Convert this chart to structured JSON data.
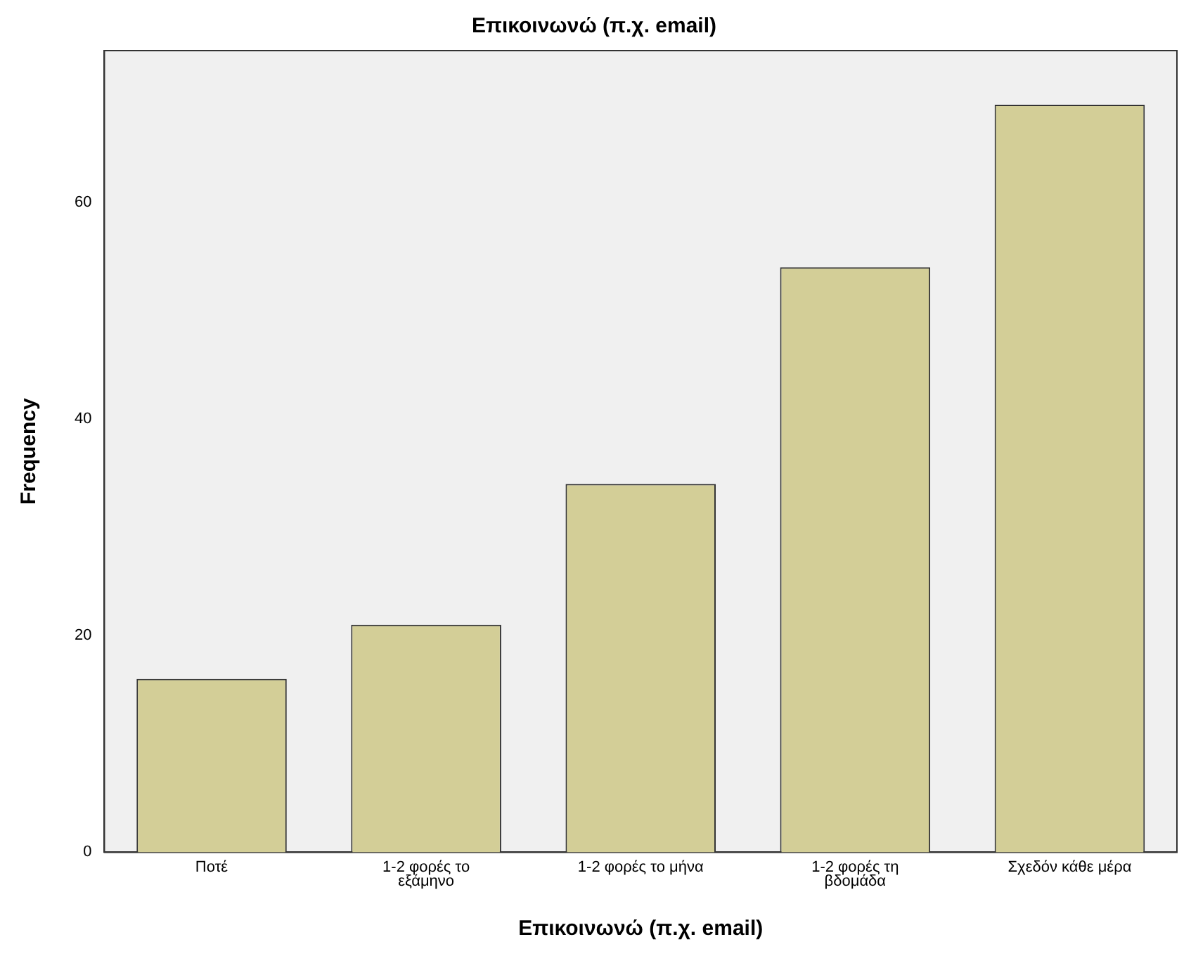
{
  "chart_data": {
    "type": "bar",
    "title": "Επικοινωνώ (π.χ. email)",
    "xlabel": "Επικοινωνώ (π.χ. email)",
    "ylabel": "Frequency",
    "categories": [
      "Ποτέ",
      "1-2 φορές το εξάμηνο",
      "1-2 φορές το μήνα",
      "1-2 φορές τη βδομάδα",
      "Σχεδόν κάθε μέρα"
    ],
    "values": [
      16,
      21,
      34,
      54,
      69
    ],
    "color": "#d3ce97",
    "ylim": [
      0,
      74
    ],
    "yticks": [
      0,
      20,
      40,
      60
    ],
    "grid": false,
    "legend": false
  }
}
